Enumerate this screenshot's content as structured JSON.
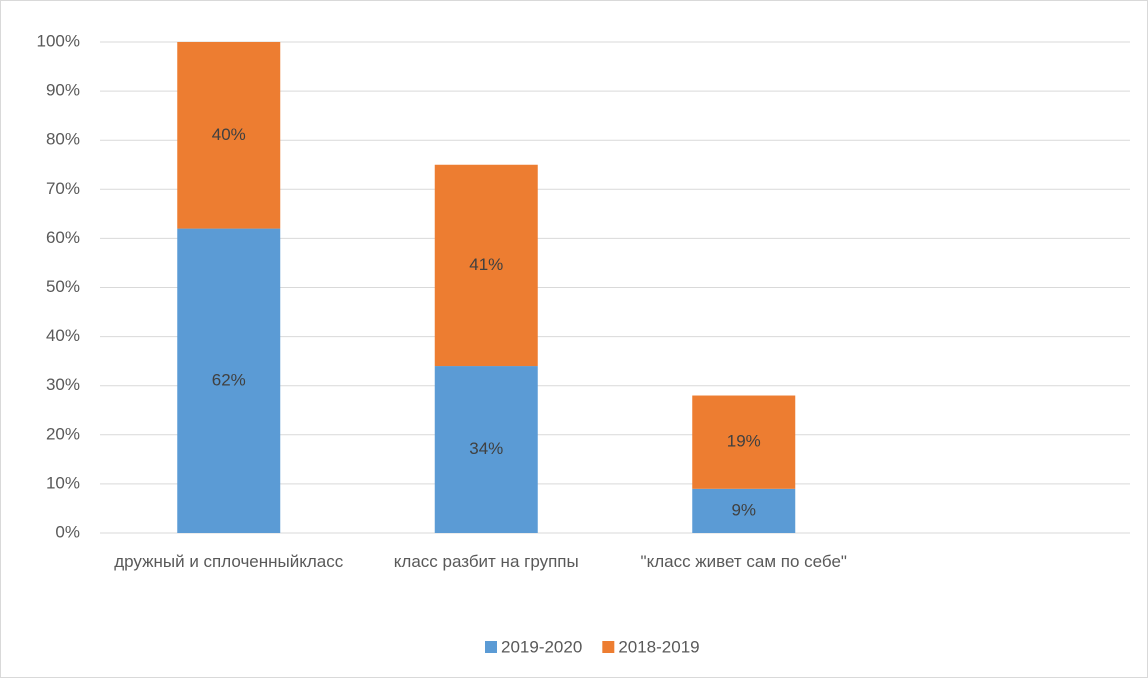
{
  "chart_data": {
    "type": "stacked_bar",
    "categories": [
      "дружный и сплоченныйкласс",
      "класс разбит на группы",
      "\"класс живет сам по себе\"",
      null
    ],
    "series": [
      {
        "name": "2019-2020",
        "color": "#5b9bd5",
        "values": [
          62,
          34,
          9,
          null
        ],
        "value_labels": [
          "62%",
          "34%",
          "9%",
          null
        ]
      },
      {
        "name": "2018-2019",
        "color": "#ed7d31",
        "values": [
          40,
          41,
          19,
          null
        ],
        "value_labels": [
          "40%",
          "41%",
          "19%",
          null
        ]
      }
    ],
    "ylim": [
      0,
      100
    ],
    "yticks": [
      {
        "value": 0,
        "label": "0%"
      },
      {
        "value": 10,
        "label": "10%"
      },
      {
        "value": 20,
        "label": "20%"
      },
      {
        "value": 30,
        "label": "30%"
      },
      {
        "value": 40,
        "label": "40%"
      },
      {
        "value": 50,
        "label": "50%"
      },
      {
        "value": 60,
        "label": "60%"
      },
      {
        "value": 70,
        "label": "70%"
      },
      {
        "value": 80,
        "label": "80%"
      },
      {
        "value": 90,
        "label": "90%"
      },
      {
        "value": 100,
        "label": "100%"
      }
    ],
    "grid": true,
    "legend": "bottom"
  }
}
